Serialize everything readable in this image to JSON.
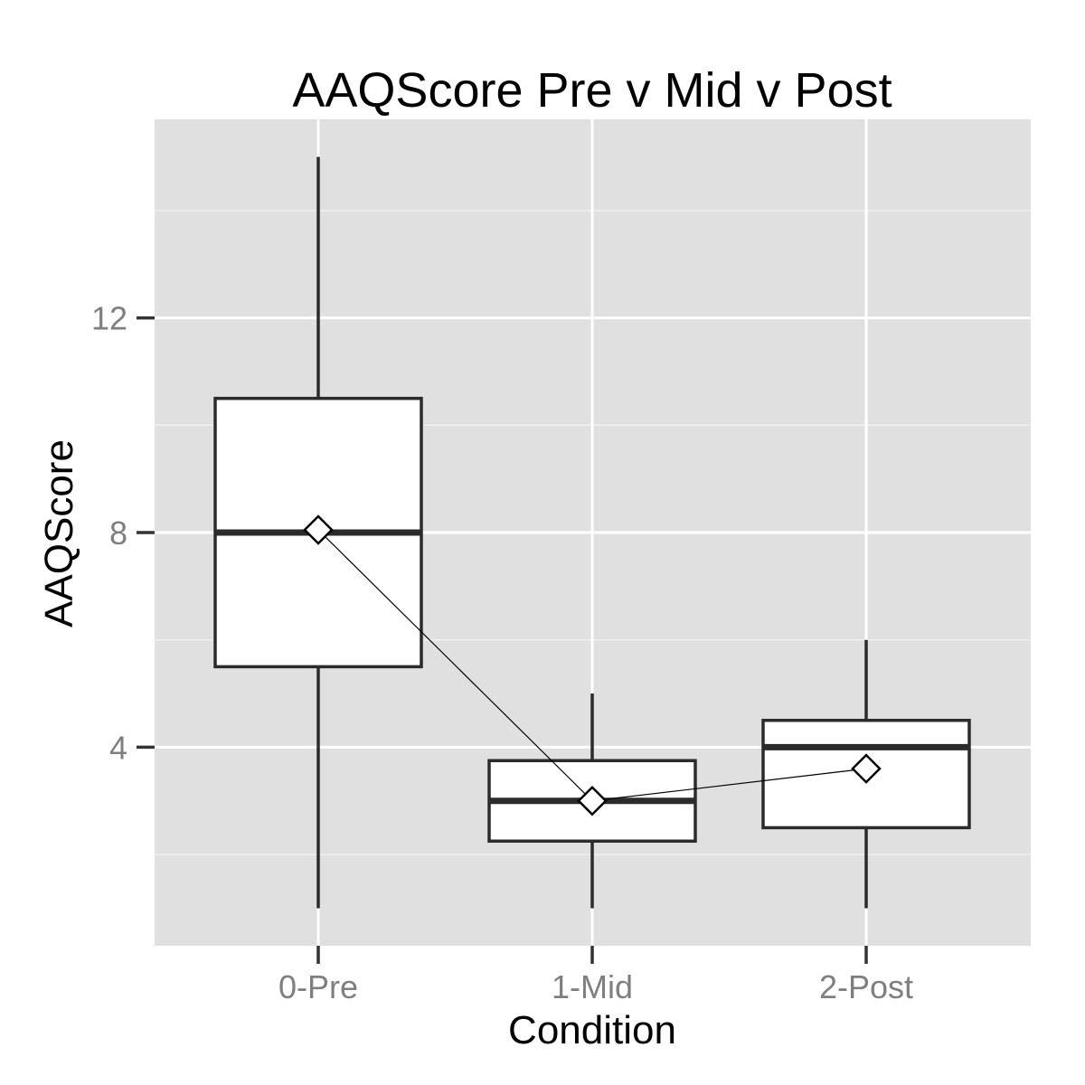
{
  "chart_data": {
    "type": "boxplot",
    "title": "AAQScore Pre v Mid v Post",
    "xlabel": "Condition",
    "ylabel": "AAQScore",
    "categories": [
      "0-Pre",
      "1-Mid",
      "2-Post"
    ],
    "ylim": [
      0.3,
      15.7
    ],
    "yticks": [
      4,
      8,
      12
    ],
    "ytick_labels": [
      "4",
      "8",
      "12"
    ],
    "grid": true,
    "boxes": [
      {
        "category": "0-Pre",
        "min": 1,
        "q1": 5.5,
        "median": 8,
        "q3": 10.5,
        "max": 15
      },
      {
        "category": "1-Mid",
        "min": 1,
        "q1": 2.25,
        "median": 3,
        "q3": 3.75,
        "max": 5
      },
      {
        "category": "2-Post",
        "min": 1,
        "q1": 2.5,
        "median": 4,
        "q3": 4.5,
        "max": 6
      }
    ],
    "means": [
      8.05,
      3.0,
      3.6
    ],
    "colors": {
      "panel_background": "#e0e0e0",
      "grid_major": "#ffffff",
      "box_fill": "#ffffff",
      "box_stroke": "#2b2b2b",
      "mean_line": "#000000",
      "tick_color": "#333333"
    }
  }
}
